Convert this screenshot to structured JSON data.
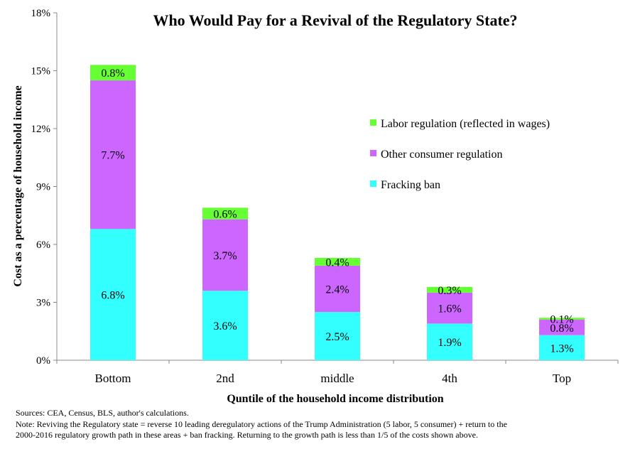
{
  "chart_data": {
    "type": "bar",
    "stacked": true,
    "title": "Who Would Pay for a Revival of the Regulatory State?",
    "xlabel": "Quntile of the household income distribution",
    "ylabel": "Cost as a percentage of household income",
    "ylim": [
      0,
      18
    ],
    "yticks": [
      0,
      3,
      6,
      9,
      12,
      15,
      18
    ],
    "ytick_labels": [
      "0%",
      "3%",
      "6%",
      "9%",
      "12%",
      "15%",
      "18%"
    ],
    "categories": [
      "Bottom",
      "2nd",
      "middle",
      "4th",
      "Top"
    ],
    "series": [
      {
        "name": "Fracking ban",
        "color": "#33ffff",
        "values": [
          6.8,
          3.6,
          2.5,
          1.9,
          1.3
        ],
        "labels": [
          "6.8%",
          "3.6%",
          "2.5%",
          "1.9%",
          "1.3%"
        ]
      },
      {
        "name": "Other consumer regulation",
        "color": "#cc66ff",
        "values": [
          7.7,
          3.7,
          2.4,
          1.6,
          0.8
        ],
        "labels": [
          "7.7%",
          "3.7%",
          "2.4%",
          "1.6%",
          "0.8%"
        ]
      },
      {
        "name": "Labor regulation (reflected in wages)",
        "color": "#66ff33",
        "values": [
          0.8,
          0.6,
          0.4,
          0.3,
          0.1
        ],
        "labels": [
          "0.8%",
          "0.6%",
          "0.4%",
          "0.3%",
          "0.1%"
        ]
      }
    ],
    "legend_order": [
      2,
      1,
      0
    ],
    "legend_position": "right",
    "grid": false
  },
  "notes": {
    "sources": "Sources: CEA, Census, BLS, author's calculations.",
    "note_line1": "Note: Reviving the Regulatory state = reverse 10 leading deregulatory actions of the Trump Administration (5 labor, 5 consumer) + return to the",
    "note_line2": "2000-2016 regulatory growth path in these areas + ban fracking.  Returning to the growth path is less than 1/5 of the costs shown above."
  }
}
